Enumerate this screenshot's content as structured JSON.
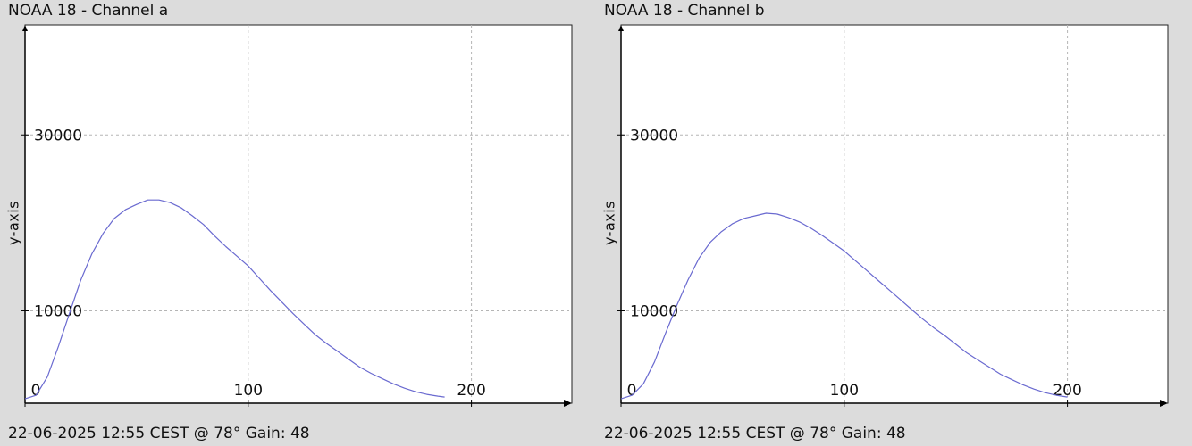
{
  "chart_data": [
    {
      "type": "line",
      "title": "NOAA 18 - Channel a",
      "footer": "22-06-2025 12:55 CEST @ 78° Gain: 48",
      "xlabel": "",
      "ylabel": "y-axis",
      "xlim": [
        0,
        245
      ],
      "ylim": [
        -500,
        42500
      ],
      "xticks": [
        0,
        100,
        200
      ],
      "yticks": [
        10000,
        30000
      ],
      "grid": true,
      "line_color": "#6a6ad0",
      "series": [
        {
          "x": [
            0,
            5,
            10,
            15,
            20,
            25,
            30,
            35,
            40,
            45,
            50,
            55,
            60,
            65,
            70,
            75,
            80,
            85,
            90,
            95,
            100,
            105,
            110,
            115,
            120,
            125,
            130,
            135,
            140,
            145,
            150,
            155,
            160,
            165,
            170,
            175,
            180,
            185,
            188
          ],
          "values": [
            0,
            400,
            2500,
            6000,
            9800,
            13500,
            16500,
            18800,
            20500,
            21500,
            22100,
            22600,
            22600,
            22300,
            21700,
            20800,
            19800,
            18500,
            17300,
            16200,
            15100,
            13700,
            12300,
            11000,
            9700,
            8500,
            7300,
            6300,
            5400,
            4500,
            3600,
            2900,
            2300,
            1700,
            1200,
            800,
            500,
            300,
            200
          ]
        }
      ]
    },
    {
      "type": "line",
      "title": "NOAA 18 - Channel b",
      "footer": "22-06-2025 12:55 CEST @ 78° Gain: 48",
      "xlabel": "",
      "ylabel": "y-axis",
      "xlim": [
        0,
        245
      ],
      "ylim": [
        -500,
        42500
      ],
      "xticks": [
        0,
        100,
        200
      ],
      "yticks": [
        10000,
        30000
      ],
      "grid": true,
      "line_color": "#6a6ad0",
      "series": [
        {
          "x": [
            0,
            5,
            10,
            15,
            20,
            25,
            30,
            35,
            40,
            45,
            50,
            55,
            60,
            65,
            70,
            75,
            80,
            85,
            90,
            95,
            100,
            105,
            110,
            115,
            120,
            125,
            130,
            135,
            140,
            145,
            150,
            155,
            160,
            165,
            170,
            175,
            180,
            185,
            190,
            195,
            200
          ],
          "values": [
            0,
            400,
            1700,
            4200,
            7500,
            10600,
            13500,
            16000,
            17800,
            19000,
            19900,
            20500,
            20800,
            21100,
            21000,
            20600,
            20100,
            19400,
            18600,
            17700,
            16800,
            15700,
            14600,
            13500,
            12400,
            11300,
            10200,
            9100,
            8100,
            7200,
            6200,
            5200,
            4400,
            3600,
            2800,
            2200,
            1600,
            1100,
            700,
            400,
            200
          ]
        }
      ]
    }
  ]
}
